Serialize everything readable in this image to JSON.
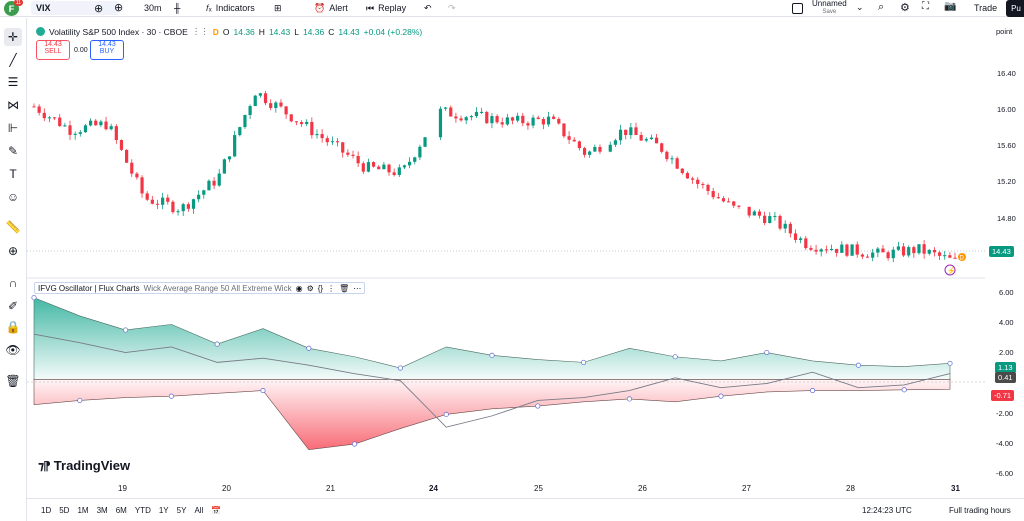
{
  "header": {
    "avatar_letter": "F",
    "avatar_badge": "11",
    "symbol": "VIX",
    "interval": "30m",
    "indicators_label": "Indicators",
    "alert_label": "Alert",
    "replay_label": "Replay",
    "layout_name": "Unnamed",
    "layout_status": "Save",
    "trade_label": "Trade",
    "publish_label": "Pu"
  },
  "legend": {
    "title": "Volatility S&P 500 Index · 30 · CBOE",
    "flag": "D",
    "o_label": "O",
    "o_val": "14.36",
    "h_label": "H",
    "h_val": "14.43",
    "l_label": "L",
    "l_val": "14.36",
    "c_label": "C",
    "c_val": "14.43",
    "change": "+0.04 (+0.28%)"
  },
  "order": {
    "sell_price": "14.43",
    "sell_label": "SELL",
    "spread": "0.00",
    "buy_price": "14.43",
    "buy_label": "BUY"
  },
  "indicator": {
    "name": "IFVG Oscillator | Flux Charts",
    "params": "Wick Average Range 50 All Extreme Wick"
  },
  "price_axis": {
    "unit": "point",
    "main_ticks": [
      "16.40",
      "16.00",
      "15.60",
      "15.20",
      "14.80"
    ],
    "last_price": "14.43",
    "osc_ticks": [
      "6.00",
      "4.00",
      "2.00",
      "-2.00",
      "-4.00",
      "-6.00"
    ],
    "osc_bull": "1.13",
    "osc_mid": "0.41",
    "osc_bear": "-0.71"
  },
  "time_axis": {
    "labels": [
      "19",
      "20",
      "21",
      "24",
      "25",
      "26",
      "27",
      "28",
      "31"
    ]
  },
  "bottom": {
    "ranges": [
      "1D",
      "5D",
      "1M",
      "3M",
      "6M",
      "YTD",
      "1Y",
      "5Y",
      "All"
    ],
    "clock": "12:24:23 UTC",
    "session": "Full trading hours"
  },
  "branding": {
    "logo_text": "TradingView"
  },
  "colors": {
    "up": "#089981",
    "down": "#f23645",
    "bull_fill": "#22ab94",
    "bear_fill": "#f7525f"
  },
  "chart_data": {
    "type": "candlestick",
    "ylim": [
      14.3,
      16.6
    ],
    "x_labels": [
      "19",
      "20",
      "21",
      "24",
      "25",
      "26",
      "27",
      "28",
      "31"
    ],
    "approx_close": [
      15.95,
      15.72,
      15.78,
      15.05,
      14.95,
      15.25,
      16.1,
      15.85,
      15.6,
      15.35,
      15.3,
      15.9,
      15.85,
      15.8,
      15.82,
      15.48,
      15.72,
      15.55,
      15.2,
      14.95,
      14.85,
      14.6,
      14.55,
      14.5,
      14.55,
      14.43
    ],
    "oscillator": {
      "ylim": [
        -6.8,
        6.2
      ],
      "bull": [
        5.8,
        4.5,
        3.5,
        3.9,
        2.5,
        3.6,
        2.2,
        1.6,
        0.8,
        2.3,
        1.7,
        1.4,
        1.2,
        2.2,
        1.6,
        1.3,
        1.9,
        1.3,
        1.0,
        0.9,
        1.13
      ],
      "bear": [
        -1.8,
        -1.5,
        -1.3,
        -1.2,
        -1.0,
        -0.8,
        -5.0,
        -4.6,
        -3.5,
        -2.5,
        -2.1,
        -1.9,
        -1.6,
        -1.4,
        -1.6,
        -1.2,
        -0.9,
        -0.8,
        -0.8,
        -0.75,
        -0.71
      ],
      "mid": [
        3.2,
        2.6,
        1.9,
        2.3,
        1.2,
        1.5,
        1.0,
        0.4,
        -0.1,
        -3.4,
        -2.6,
        -1.5,
        -1.3,
        -0.8,
        0.1,
        -0.6,
        -0.3,
        0.5,
        -0.6,
        -0.4,
        0.41
      ]
    }
  }
}
